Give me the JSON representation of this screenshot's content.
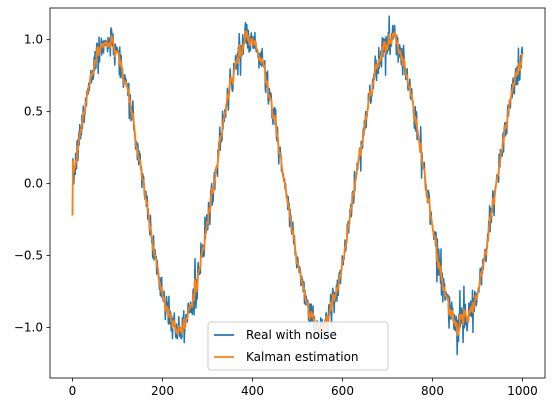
{
  "chart_data": {
    "type": "line",
    "title": "",
    "xlabel": "",
    "ylabel": "",
    "xlim": [
      -50,
      1050
    ],
    "ylim": [
      -1.35,
      1.22
    ],
    "xticks": [
      0,
      200,
      400,
      600,
      800,
      1000
    ],
    "yticks": [
      -1.0,
      -0.5,
      0.0,
      0.5,
      1.0
    ],
    "xtick_labels": [
      "0",
      "200",
      "400",
      "600",
      "800",
      "1000"
    ],
    "ytick_labels": [
      "−1.0",
      "−0.5",
      "0.0",
      "0.5",
      "1.0"
    ],
    "grid": false,
    "legend": {
      "position": "bottom-center"
    },
    "signal": {
      "form": "sine",
      "period": 314.16,
      "amplitude": 1.0,
      "x_start": 0,
      "x_end": 1000,
      "n_points": 1000
    },
    "series": [
      {
        "name": "Real with noise",
        "color": "#1f77b4",
        "noise_sd": 0.055,
        "initial_value": -0.22
      },
      {
        "name": "Kalman estimation",
        "color": "#ff7f0e",
        "initial_value": -0.22
      }
    ]
  }
}
